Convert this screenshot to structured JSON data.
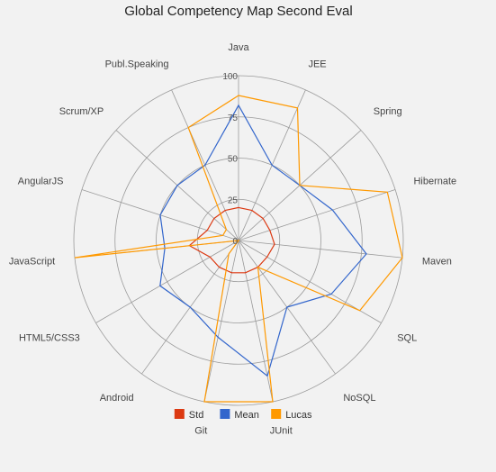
{
  "chart_data": {
    "type": "radar",
    "title": "Global Competency Map Second Eval",
    "categories": [
      "Java",
      "JEE",
      "Spring",
      "Hibernate",
      "Maven",
      "SQL",
      "NoSQL",
      "JUnit",
      "Git",
      "Android",
      "HTML5/CSS3",
      "JavaScript",
      "AngularJS",
      "Scrum/XP",
      "Publ.Speaking"
    ],
    "rlim": [
      0,
      100
    ],
    "ticks": [
      0,
      25,
      50,
      75,
      100
    ],
    "tick_labels": [
      "0",
      "25",
      "50",
      "75",
      "100"
    ],
    "grid": true,
    "legend_position": "bottom",
    "series": [
      {
        "name": "Std",
        "color": "#dc3912",
        "values": [
          20,
          20,
          20,
          20,
          22,
          20,
          20,
          20,
          20,
          20,
          20,
          30,
          20,
          20,
          20
        ]
      },
      {
        "name": "Mean",
        "color": "#3366cc",
        "values": [
          82,
          50,
          50,
          60,
          78,
          65,
          50,
          84,
          60,
          50,
          55,
          45,
          50,
          50,
          50
        ]
      },
      {
        "name": "Lucas",
        "color": "#ff9900",
        "values": [
          88,
          88,
          50,
          95,
          100,
          85,
          20,
          100,
          100,
          10,
          0,
          100,
          10,
          10,
          75
        ]
      }
    ]
  }
}
